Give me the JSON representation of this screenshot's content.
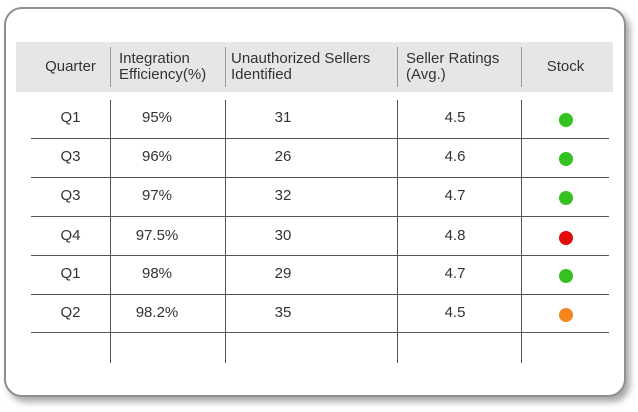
{
  "table": {
    "headers": [
      "Quarter",
      "Integration Efficiency(%)",
      "Unauthorized Sellers Identified",
      "Seller Ratings (Avg.)",
      "Stock"
    ],
    "rows": [
      {
        "quarter": "Q1",
        "efficiency": "95%",
        "unauthorized": "31",
        "rating": "4.5",
        "stock": "green"
      },
      {
        "quarter": "Q3",
        "efficiency": "96%",
        "unauthorized": "26",
        "rating": "4.6",
        "stock": "green"
      },
      {
        "quarter": "Q3",
        "efficiency": "97%",
        "unauthorized": "32",
        "rating": "4.7",
        "stock": "green"
      },
      {
        "quarter": "Q4",
        "efficiency": "97.5%",
        "unauthorized": "30",
        "rating": "4.8",
        "stock": "red"
      },
      {
        "quarter": "Q1",
        "efficiency": "98%",
        "unauthorized": "29",
        "rating": "4.7",
        "stock": "green"
      },
      {
        "quarter": "Q2",
        "efficiency": "98.2%",
        "unauthorized": "35",
        "rating": "4.5",
        "stock": "orange"
      }
    ]
  },
  "colors": {
    "green": "#33c21f",
    "red": "#e30a0a",
    "orange": "#f5861f",
    "header_bg": "#e6e6e6"
  }
}
